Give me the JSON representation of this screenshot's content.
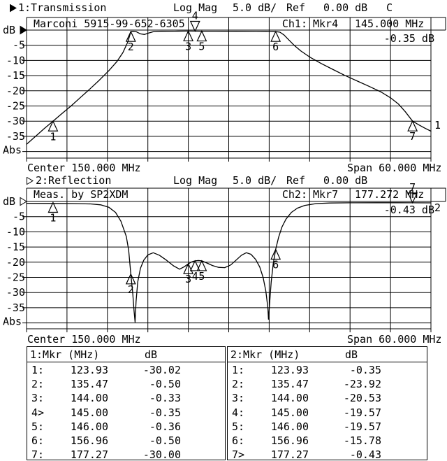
{
  "status_line1": {
    "channel": "1:Transmission",
    "mode": "Log Mag",
    "scale": "5.0 dB/",
    "ref_label": "Ref",
    "ref_value": "0.00 dB",
    "cal_flag": "C"
  },
  "status_line2": {
    "channel": "2:Reflection",
    "mode": "Log Mag",
    "scale": "5.0 dB/",
    "ref_label": "Ref",
    "ref_value": "0.00 dB"
  },
  "axis1": {
    "center": "Center 150.000 MHz",
    "span": "Span 60.000 MHz"
  },
  "axis2": {
    "center": "Center 150.000 MHz",
    "span": "Span 60.000 MHz"
  },
  "tables": [
    {
      "title": "1:Mkr (MHz)",
      "unit": "dB",
      "rows": [
        [
          "1:",
          "123.93",
          "-30.02"
        ],
        [
          "2:",
          "135.47",
          "-0.50"
        ],
        [
          "3:",
          "144.00",
          "-0.33"
        ],
        [
          "4>",
          "145.00",
          "-0.35"
        ],
        [
          "5:",
          "146.00",
          "-0.36"
        ],
        [
          "6:",
          "156.96",
          "-0.50"
        ],
        [
          "7:",
          "177.27",
          "-30.00"
        ]
      ]
    },
    {
      "title": "2:Mkr (MHz)",
      "unit": "dB",
      "rows": [
        [
          "1:",
          "123.93",
          "-0.35"
        ],
        [
          "2:",
          "135.47",
          "-23.92"
        ],
        [
          "3:",
          "144.00",
          "-20.53"
        ],
        [
          "4:",
          "145.00",
          "-19.57"
        ],
        [
          "5:",
          "146.00",
          "-19.57"
        ],
        [
          "6:",
          "156.96",
          "-15.78"
        ],
        [
          "7>",
          "177.27",
          "-0.43"
        ]
      ]
    }
  ],
  "chart_data": [
    {
      "type": "line",
      "name": "transmission",
      "title": "Marconi 5915-99-652-6305",
      "readout": {
        "ch": "Ch1:",
        "marker": "Mkr4",
        "freq": "145.000 MHz",
        "value": "-0.35 dB"
      },
      "trace_no": "1",
      "xlim": [
        120,
        180
      ],
      "ylim": [
        -40,
        0
      ],
      "db_per_div": 5,
      "y_unit": "dB",
      "tick_labels": [
        "-5",
        "-10",
        "-15",
        "-20",
        "-25",
        "-30",
        "-35"
      ],
      "bottom_label": "Abs",
      "xlabel_center": "Center 150.000 MHz",
      "xlabel_span": "Span 60.000 MHz",
      "points": [
        [
          120,
          -37.6
        ],
        [
          121.3,
          -35.1
        ],
        [
          122.6,
          -32.5
        ],
        [
          123.93,
          -30.02
        ],
        [
          125.2,
          -27.6
        ],
        [
          126.6,
          -25.0
        ],
        [
          128.0,
          -22.2
        ],
        [
          129.4,
          -19.4
        ],
        [
          130.8,
          -16.5
        ],
        [
          132.2,
          -13.4
        ],
        [
          133.4,
          -10.4
        ],
        [
          134.3,
          -7.4
        ],
        [
          135.0,
          -4.0
        ],
        [
          135.25,
          -2.2
        ],
        [
          135.47,
          -0.5
        ],
        [
          135.8,
          -0.42
        ],
        [
          136.3,
          -0.55
        ],
        [
          136.9,
          -1.25
        ],
        [
          137.5,
          -1.45
        ],
        [
          138.1,
          -1.0
        ],
        [
          138.8,
          -0.55
        ],
        [
          140,
          -0.4
        ],
        [
          142,
          -0.36
        ],
        [
          144,
          -0.33
        ],
        [
          145,
          -0.35
        ],
        [
          146,
          -0.36
        ],
        [
          148,
          -0.37
        ],
        [
          151,
          -0.4
        ],
        [
          154,
          -0.44
        ],
        [
          156,
          -0.48
        ],
        [
          156.96,
          -0.5
        ],
        [
          157.6,
          -0.7
        ],
        [
          158.2,
          -1.6
        ],
        [
          158.9,
          -3.2
        ],
        [
          159.7,
          -5.0
        ],
        [
          160.7,
          -6.9
        ],
        [
          162.1,
          -9.0
        ],
        [
          163.7,
          -11.0
        ],
        [
          165.4,
          -12.9
        ],
        [
          167.2,
          -14.9
        ],
        [
          169.0,
          -16.7
        ],
        [
          170.8,
          -18.5
        ],
        [
          172.6,
          -20.4
        ],
        [
          174.0,
          -22.3
        ],
        [
          175.2,
          -24.4
        ],
        [
          176.2,
          -26.9
        ],
        [
          177.27,
          -30.0
        ],
        [
          178.2,
          -31.2
        ],
        [
          179.1,
          -32.3
        ],
        [
          180,
          -33.3
        ]
      ],
      "markers": [
        {
          "n": "1",
          "f": 123.93,
          "db": -30.02
        },
        {
          "n": "2",
          "f": 135.47,
          "db": -0.5
        },
        {
          "n": "3",
          "f": 144.0,
          "db": -0.33
        },
        {
          "n": "4",
          "f": 145.0,
          "db": -0.35,
          "active": true
        },
        {
          "n": "5",
          "f": 146.0,
          "db": -0.36
        },
        {
          "n": "6",
          "f": 156.96,
          "db": -0.5
        },
        {
          "n": "7",
          "f": 177.27,
          "db": -30.0
        }
      ]
    },
    {
      "type": "line",
      "name": "reflection",
      "title": "Meas. by SP2XDM",
      "readout": {
        "ch": "Ch2:",
        "marker": "Mkr7",
        "freq": "177.272 MHz",
        "value": "-0.43 dB"
      },
      "trace_no": "2",
      "xlim": [
        120,
        180
      ],
      "ylim": [
        -40,
        0
      ],
      "db_per_div": 5,
      "y_unit": "dB",
      "tick_labels": [
        "-5",
        "-10",
        "-15",
        "-20",
        "-25",
        "-30",
        "-35"
      ],
      "bottom_label": "Abs",
      "xlabel_center": "Center 150.000 MHz",
      "xlabel_span": "Span 60.000 MHz",
      "points": [
        [
          120,
          -0.6
        ],
        [
          124,
          -0.65
        ],
        [
          127,
          -0.7
        ],
        [
          129.5,
          -0.8
        ],
        [
          131,
          -1.1
        ],
        [
          132.2,
          -1.9
        ],
        [
          133.2,
          -3.6
        ],
        [
          134.0,
          -6.5
        ],
        [
          134.8,
          -11.5
        ],
        [
          135.15,
          -16.0
        ],
        [
          135.47,
          -23.92
        ],
        [
          135.75,
          -30.0
        ],
        [
          135.95,
          -36.0
        ],
        [
          136.1,
          -39.7
        ],
        [
          136.25,
          -33.0
        ],
        [
          136.5,
          -26.5
        ],
        [
          136.9,
          -22.0
        ],
        [
          137.4,
          -19.3
        ],
        [
          138.0,
          -17.6
        ],
        [
          138.8,
          -16.9
        ],
        [
          139.7,
          -17.7
        ],
        [
          140.8,
          -19.4
        ],
        [
          141.8,
          -21.2
        ],
        [
          142.7,
          -22.3
        ],
        [
          143.4,
          -21.5
        ],
        [
          144.0,
          -20.53
        ],
        [
          144.5,
          -19.9
        ],
        [
          145.0,
          -19.57
        ],
        [
          145.5,
          -19.45
        ],
        [
          146.0,
          -19.57
        ],
        [
          146.8,
          -20.3
        ],
        [
          147.6,
          -21.1
        ],
        [
          148.5,
          -21.7
        ],
        [
          149.4,
          -21.8
        ],
        [
          150.3,
          -20.9
        ],
        [
          151.1,
          -19.3
        ],
        [
          151.9,
          -17.7
        ],
        [
          152.6,
          -16.9
        ],
        [
          153.3,
          -17.4
        ],
        [
          154.0,
          -19.1
        ],
        [
          154.6,
          -21.6
        ],
        [
          155.1,
          -25.0
        ],
        [
          155.5,
          -29.5
        ],
        [
          155.8,
          -35.0
        ],
        [
          155.9,
          -38.8
        ],
        [
          156.05,
          -34.0
        ],
        [
          156.3,
          -26.5
        ],
        [
          156.6,
          -20.5
        ],
        [
          156.96,
          -15.78
        ],
        [
          157.4,
          -11.8
        ],
        [
          157.9,
          -8.4
        ],
        [
          158.5,
          -5.8
        ],
        [
          159.3,
          -3.6
        ],
        [
          160.2,
          -2.2
        ],
        [
          161.3,
          -1.3
        ],
        [
          163.0,
          -0.7
        ],
        [
          165.0,
          -0.5
        ],
        [
          168.0,
          -0.44
        ],
        [
          172.0,
          -0.42
        ],
        [
          175.0,
          -0.42
        ],
        [
          177.27,
          -0.43
        ],
        [
          180,
          -0.46
        ]
      ],
      "markers": [
        {
          "n": "1",
          "f": 123.93,
          "db": -0.35
        },
        {
          "n": "2",
          "f": 135.47,
          "db": -23.92
        },
        {
          "n": "3",
          "f": 144.0,
          "db": -20.53
        },
        {
          "n": "4",
          "f": 145.0,
          "db": -19.57
        },
        {
          "n": "5",
          "f": 146.0,
          "db": -19.57
        },
        {
          "n": "6",
          "f": 156.96,
          "db": -15.78
        },
        {
          "n": "7",
          "f": 177.27,
          "db": -0.43,
          "active": true
        }
      ]
    }
  ]
}
